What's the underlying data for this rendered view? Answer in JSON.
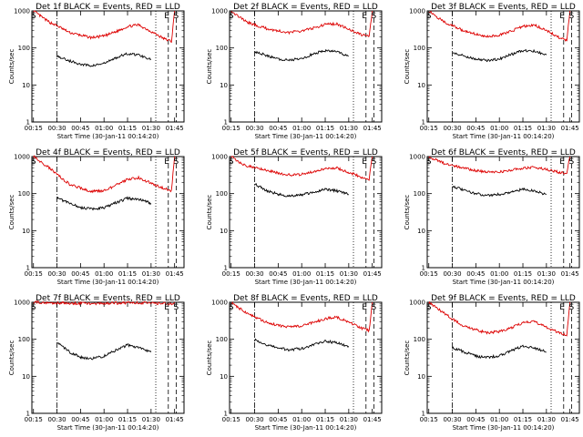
{
  "chart_data": [
    {
      "type": "line",
      "title": "Det 1f BLACK = Events, RED = LLD",
      "xlabel": "Start Time (30-Jan-11 00:14:20)",
      "ylabel": "Counts/sec",
      "x_ticks": [
        "00:15",
        "00:30",
        "00:45",
        "01:00",
        "01:15",
        "01:30",
        "01:45"
      ],
      "y_scale": "log",
      "ylim": [
        1,
        1000
      ],
      "y_ticks": [
        "1",
        "10",
        "100",
        "1000"
      ],
      "markers": [
        {
          "letter": "S",
          "time": "00:15"
        },
        {
          "letter": "E",
          "time": "01:40"
        },
        {
          "letter": "S",
          "time": "01:46"
        }
      ],
      "series": [
        {
          "name": "Events",
          "color": "#000000",
          "x": [
            "00:30",
            "00:38",
            "00:45",
            "00:52",
            "01:00",
            "01:08",
            "01:15",
            "01:22",
            "01:30"
          ],
          "values": [
            60,
            45,
            36,
            33,
            38,
            55,
            70,
            65,
            50
          ]
        },
        {
          "name": "LLD",
          "color": "#dd0000",
          "x": [
            "00:15",
            "00:20",
            "00:25",
            "00:30",
            "00:38",
            "00:45",
            "00:52",
            "01:00",
            "01:08",
            "01:15",
            "01:22",
            "01:30",
            "01:38",
            "01:43",
            "01:45"
          ],
          "values": [
            1000,
            700,
            500,
            400,
            260,
            220,
            190,
            210,
            280,
            380,
            420,
            280,
            180,
            150,
            1000
          ]
        }
      ]
    },
    {
      "type": "line",
      "title": "Det 2f BLACK = Events, RED = LLD",
      "xlabel": "Start Time (30-Jan-11 00:14:20)",
      "ylabel": "Counts/sec",
      "x_ticks": [
        "00:15",
        "00:30",
        "00:45",
        "01:00",
        "01:15",
        "01:30",
        "01:45"
      ],
      "y_scale": "log",
      "ylim": [
        1,
        1000
      ],
      "y_ticks": [
        "1",
        "10",
        "100",
        "1000"
      ],
      "markers": [
        {
          "letter": "S",
          "time": "00:15"
        },
        {
          "letter": "E",
          "time": "01:40"
        },
        {
          "letter": "S",
          "time": "01:46"
        }
      ],
      "series": [
        {
          "name": "Events",
          "color": "#000000",
          "x": [
            "00:30",
            "00:38",
            "00:45",
            "00:52",
            "01:00",
            "01:08",
            "01:15",
            "01:22",
            "01:30"
          ],
          "values": [
            80,
            62,
            50,
            47,
            52,
            70,
            85,
            80,
            60
          ]
        },
        {
          "name": "LLD",
          "color": "#dd0000",
          "x": [
            "00:15",
            "00:20",
            "00:25",
            "00:30",
            "00:38",
            "00:45",
            "00:52",
            "01:00",
            "01:08",
            "01:15",
            "01:22",
            "01:30",
            "01:38",
            "01:43",
            "01:45"
          ],
          "values": [
            1000,
            700,
            500,
            420,
            330,
            290,
            260,
            290,
            350,
            430,
            450,
            320,
            230,
            200,
            1000
          ]
        }
      ]
    },
    {
      "type": "line",
      "title": "Det 3f BLACK = Events, RED = LLD",
      "xlabel": "Start Time (30-Jan-11 00:14:20)",
      "ylabel": "Counts/sec",
      "x_ticks": [
        "00:15",
        "00:30",
        "00:45",
        "01:00",
        "01:15",
        "01:30",
        "01:45"
      ],
      "y_scale": "log",
      "ylim": [
        1,
        1000
      ],
      "y_ticks": [
        "1",
        "10",
        "100",
        "1000"
      ],
      "markers": [
        {
          "letter": "S",
          "time": "00:15"
        },
        {
          "letter": "E",
          "time": "01:40"
        },
        {
          "letter": "S",
          "time": "01:46"
        }
      ],
      "series": [
        {
          "name": "Events",
          "color": "#000000",
          "x": [
            "00:30",
            "00:38",
            "00:45",
            "00:52",
            "01:00",
            "01:08",
            "01:15",
            "01:22",
            "01:30"
          ],
          "values": [
            78,
            60,
            50,
            46,
            50,
            68,
            85,
            82,
            65
          ]
        },
        {
          "name": "LLD",
          "color": "#dd0000",
          "x": [
            "00:15",
            "00:20",
            "00:25",
            "00:30",
            "00:38",
            "00:45",
            "00:52",
            "01:00",
            "01:08",
            "01:15",
            "01:22",
            "01:30",
            "01:38",
            "01:43",
            "01:45"
          ],
          "values": [
            1000,
            700,
            500,
            400,
            280,
            240,
            200,
            220,
            290,
            380,
            420,
            300,
            190,
            160,
            1000
          ]
        }
      ]
    },
    {
      "type": "line",
      "title": "Det 4f BLACK = Events, RED = LLD",
      "xlabel": "Start Time (30-Jan-11 00:14:20)",
      "ylabel": "Counts/sec",
      "x_ticks": [
        "00:15",
        "00:30",
        "00:45",
        "01:00",
        "01:15",
        "01:30",
        "01:45"
      ],
      "y_scale": "log",
      "ylim": [
        1,
        1000
      ],
      "y_ticks": [
        "1",
        "10",
        "100",
        "1000"
      ],
      "markers": [
        {
          "letter": "S",
          "time": "00:15"
        },
        {
          "letter": "E",
          "time": "01:40"
        },
        {
          "letter": "S",
          "time": "01:46"
        }
      ],
      "series": [
        {
          "name": "Events",
          "color": "#000000",
          "x": [
            "00:30",
            "00:38",
            "00:45",
            "00:52",
            "01:00",
            "01:08",
            "01:15",
            "01:22",
            "01:30"
          ],
          "values": [
            75,
            55,
            42,
            38,
            42,
            58,
            75,
            70,
            55
          ]
        },
        {
          "name": "LLD",
          "color": "#dd0000",
          "x": [
            "00:15",
            "00:20",
            "00:25",
            "00:30",
            "00:38",
            "00:45",
            "00:52",
            "01:00",
            "01:08",
            "01:15",
            "01:22",
            "01:30",
            "01:38",
            "01:43",
            "01:45"
          ],
          "values": [
            1000,
            700,
            500,
            330,
            180,
            140,
            115,
            120,
            170,
            240,
            270,
            190,
            140,
            120,
            1000
          ]
        }
      ]
    },
    {
      "type": "line",
      "title": "Det 5f BLACK = Events, RED = LLD",
      "xlabel": "Start Time (30-Jan-11 00:14:20)",
      "ylabel": "Counts/sec",
      "x_ticks": [
        "00:15",
        "00:30",
        "00:45",
        "01:00",
        "01:15",
        "01:30",
        "01:45"
      ],
      "y_scale": "log",
      "ylim": [
        1,
        1000
      ],
      "y_ticks": [
        "1",
        "10",
        "100",
        "1000"
      ],
      "markers": [
        {
          "letter": "S",
          "time": "00:15"
        },
        {
          "letter": "E",
          "time": "01:40"
        },
        {
          "letter": "S",
          "time": "01:46"
        }
      ],
      "series": [
        {
          "name": "Events",
          "color": "#000000",
          "x": [
            "00:30",
            "00:38",
            "00:45",
            "00:52",
            "01:00",
            "01:08",
            "01:15",
            "01:22",
            "01:30"
          ],
          "values": [
            180,
            120,
            95,
            88,
            92,
            110,
            130,
            120,
            95
          ]
        },
        {
          "name": "LLD",
          "color": "#dd0000",
          "x": [
            "00:15",
            "00:20",
            "00:25",
            "00:30",
            "00:38",
            "00:45",
            "00:52",
            "01:00",
            "01:08",
            "01:15",
            "01:22",
            "01:30",
            "01:38",
            "01:43",
            "01:45"
          ],
          "values": [
            1000,
            700,
            560,
            520,
            430,
            360,
            320,
            330,
            400,
            480,
            500,
            380,
            280,
            240,
            1000
          ]
        }
      ]
    },
    {
      "type": "line",
      "title": "Det 6f BLACK = Events, RED = LLD",
      "xlabel": "Start Time (30-Jan-11 00:14:20)",
      "ylabel": "Counts/sec",
      "x_ticks": [
        "00:15",
        "00:30",
        "00:45",
        "01:00",
        "01:15",
        "01:30",
        "01:45"
      ],
      "y_scale": "log",
      "ylim": [
        1,
        1000
      ],
      "y_ticks": [
        "1",
        "10",
        "100",
        "1000"
      ],
      "markers": [
        {
          "letter": "S",
          "time": "00:15"
        },
        {
          "letter": "E",
          "time": "01:40"
        },
        {
          "letter": "S",
          "time": "01:46"
        }
      ],
      "series": [
        {
          "name": "Events",
          "color": "#000000",
          "x": [
            "00:30",
            "00:38",
            "00:45",
            "00:52",
            "01:00",
            "01:08",
            "01:15",
            "01:22",
            "01:30"
          ],
          "values": [
            160,
            120,
            100,
            90,
            95,
            112,
            130,
            120,
            95
          ]
        },
        {
          "name": "LLD",
          "color": "#dd0000",
          "x": [
            "00:15",
            "00:20",
            "00:25",
            "00:30",
            "00:38",
            "00:45",
            "00:52",
            "01:00",
            "01:08",
            "01:15",
            "01:22",
            "01:30",
            "01:38",
            "01:43",
            "01:45"
          ],
          "values": [
            1000,
            800,
            650,
            580,
            480,
            420,
            380,
            390,
            430,
            490,
            510,
            450,
            380,
            340,
            1000
          ]
        }
      ]
    },
    {
      "type": "line",
      "title": "Det 7f BLACK = Events, RED = LLD",
      "xlabel": "Start Time (30-Jan-11 00:14:20)",
      "ylabel": "Counts/sec",
      "x_ticks": [
        "00:15",
        "00:30",
        "00:45",
        "01:00",
        "01:15",
        "01:30",
        "01:45"
      ],
      "y_scale": "log",
      "ylim": [
        1,
        1000
      ],
      "y_ticks": [
        "1",
        "10",
        "100",
        "1000"
      ],
      "markers": [
        {
          "letter": "S",
          "time": "00:15"
        },
        {
          "letter": "E",
          "time": "01:40"
        },
        {
          "letter": "S",
          "time": "01:46"
        }
      ],
      "series": [
        {
          "name": "Events",
          "color": "#000000",
          "x": [
            "00:30",
            "00:38",
            "00:45",
            "00:52",
            "01:00",
            "01:08",
            "01:15",
            "01:22",
            "01:30"
          ],
          "values": [
            85,
            45,
            33,
            30,
            35,
            52,
            70,
            60,
            45
          ]
        },
        {
          "name": "LLD",
          "color": "#dd0000",
          "x": [
            "00:15",
            "00:20",
            "00:25",
            "00:30",
            "00:38",
            "00:45",
            "00:52",
            "01:00",
            "01:08",
            "01:15",
            "01:22",
            "01:30",
            "01:38",
            "01:43",
            "01:45"
          ],
          "values": [
            1000,
            980,
            960,
            950,
            940,
            930,
            920,
            930,
            950,
            960,
            970,
            940,
            920,
            900,
            1000
          ]
        }
      ]
    },
    {
      "type": "line",
      "title": "Det 8f BLACK = Events, RED = LLD",
      "xlabel": "Start Time (30-Jan-11 00:14:20)",
      "ylabel": "Counts/sec",
      "x_ticks": [
        "00:15",
        "00:30",
        "00:45",
        "01:00",
        "01:15",
        "01:30",
        "01:45"
      ],
      "y_scale": "log",
      "ylim": [
        1,
        1000
      ],
      "y_ticks": [
        "1",
        "10",
        "100",
        "1000"
      ],
      "markers": [
        {
          "letter": "S",
          "time": "00:15"
        },
        {
          "letter": "E",
          "time": "01:40"
        },
        {
          "letter": "S",
          "time": "01:46"
        }
      ],
      "series": [
        {
          "name": "Events",
          "color": "#000000",
          "x": [
            "00:30",
            "00:38",
            "00:45",
            "00:52",
            "01:00",
            "01:08",
            "01:15",
            "01:22",
            "01:30"
          ],
          "values": [
            95,
            70,
            58,
            52,
            56,
            72,
            90,
            80,
            65
          ]
        },
        {
          "name": "LLD",
          "color": "#dd0000",
          "x": [
            "00:15",
            "00:20",
            "00:25",
            "00:30",
            "00:38",
            "00:45",
            "00:52",
            "01:00",
            "01:08",
            "01:15",
            "01:22",
            "01:30",
            "01:38",
            "01:43",
            "01:45"
          ],
          "values": [
            1000,
            700,
            500,
            400,
            280,
            240,
            210,
            230,
            290,
            360,
            400,
            290,
            200,
            170,
            1000
          ]
        }
      ]
    },
    {
      "type": "line",
      "title": "Det 9f BLACK = Events, RED = LLD",
      "xlabel": "Start Time (30-Jan-11 00:14:20)",
      "ylabel": "Counts/sec",
      "x_ticks": [
        "00:15",
        "00:30",
        "00:45",
        "01:00",
        "01:15",
        "01:30",
        "01:45"
      ],
      "y_scale": "log",
      "ylim": [
        1,
        1000
      ],
      "y_ticks": [
        "1",
        "10",
        "100",
        "1000"
      ],
      "markers": [
        {
          "letter": "S",
          "time": "00:15"
        },
        {
          "letter": "E",
          "time": "01:40"
        },
        {
          "letter": "S",
          "time": "01:46"
        }
      ],
      "series": [
        {
          "name": "Events",
          "color": "#000000",
          "x": [
            "00:30",
            "00:38",
            "00:45",
            "00:52",
            "01:00",
            "01:08",
            "01:15",
            "01:22",
            "01:30"
          ],
          "values": [
            60,
            45,
            35,
            32,
            36,
            50,
            65,
            60,
            45
          ]
        },
        {
          "name": "LLD",
          "color": "#dd0000",
          "x": [
            "00:15",
            "00:20",
            "00:25",
            "00:30",
            "00:38",
            "00:45",
            "00:52",
            "01:00",
            "01:08",
            "01:15",
            "01:22",
            "01:30",
            "01:38",
            "01:43",
            "01:45"
          ],
          "values": [
            1000,
            700,
            500,
            350,
            220,
            180,
            150,
            160,
            210,
            280,
            300,
            210,
            150,
            130,
            1000
          ]
        }
      ]
    }
  ]
}
